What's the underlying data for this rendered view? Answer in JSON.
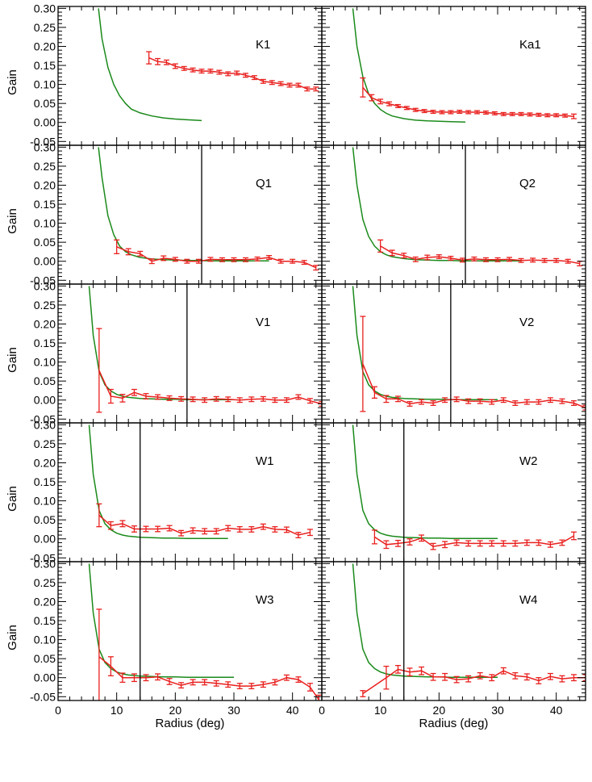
{
  "figure": {
    "ylabel": "Gain",
    "xlabel": "Radius (deg)"
  },
  "colors": {
    "model": "#1b8a1b",
    "data": "#e8201e",
    "marker": "#000000",
    "axis": "#000000"
  },
  "chart_data": [
    {
      "type": "line",
      "label": "K1",
      "xlim": [
        0,
        45
      ],
      "ylim": [
        -0.06,
        0.305
      ],
      "yticks": [
        "-0.05",
        "0.00",
        "0.05",
        "0.10",
        "0.15",
        "0.20",
        "0.25",
        "0.30"
      ],
      "xticks": [],
      "model_curve": {
        "x": [
          6.9,
          7.5,
          8.5,
          9.5,
          10.5,
          11.5,
          12.5,
          14,
          16,
          18,
          20,
          22,
          24.5
        ],
        "y": [
          0.3,
          0.22,
          0.145,
          0.1,
          0.07,
          0.05,
          0.035,
          0.025,
          0.017,
          0.012,
          0.009,
          0.007,
          0.005
        ]
      },
      "data_series": {
        "x": [
          15.5,
          17,
          18.5,
          20,
          21.5,
          23,
          24.5,
          26,
          27.5,
          29,
          30.5,
          32,
          33.5,
          35,
          36.5,
          38,
          39.5,
          41,
          42.5,
          44
        ],
        "y": [
          0.17,
          0.16,
          0.158,
          0.148,
          0.142,
          0.138,
          0.135,
          0.135,
          0.132,
          0.128,
          0.13,
          0.124,
          0.118,
          0.108,
          0.105,
          0.102,
          0.098,
          0.098,
          0.088,
          0.088
        ],
        "err": [
          0.016,
          0.008,
          0.006,
          0.006,
          0.005,
          0.005,
          0.005,
          0.005,
          0.005,
          0.005,
          0.005,
          0.005,
          0.005,
          0.005,
          0.005,
          0.005,
          0.005,
          0.005,
          0.005,
          0.005
        ]
      },
      "marker_x": null
    },
    {
      "type": "line",
      "label": "Ka1",
      "xlim": [
        0,
        45
      ],
      "ylim": [
        -0.06,
        0.305
      ],
      "yticks": [],
      "xticks": [],
      "model_curve": {
        "x": [
          5.3,
          6,
          7,
          8,
          9,
          10,
          11,
          12,
          14,
          16,
          18,
          20,
          22,
          24.5
        ],
        "y": [
          0.3,
          0.2,
          0.12,
          0.075,
          0.05,
          0.034,
          0.024,
          0.017,
          0.01,
          0.006,
          0.004,
          0.003,
          0.002,
          0.001
        ]
      },
      "data_series": {
        "x": [
          7,
          8.5,
          10,
          11.5,
          13,
          14.5,
          16,
          17.5,
          19,
          20.5,
          22,
          23.5,
          25,
          26.5,
          28,
          29.5,
          31,
          32.5,
          34,
          35.5,
          37,
          38.5,
          40,
          41.5,
          43
        ],
        "y": [
          0.092,
          0.065,
          0.055,
          0.049,
          0.043,
          0.038,
          0.033,
          0.03,
          0.028,
          0.027,
          0.027,
          0.028,
          0.027,
          0.027,
          0.026,
          0.024,
          0.022,
          0.022,
          0.022,
          0.021,
          0.02,
          0.019,
          0.019,
          0.018,
          0.016
        ],
        "err": [
          0.025,
          0.008,
          0.006,
          0.005,
          0.004,
          0.004,
          0.004,
          0.004,
          0.004,
          0.004,
          0.004,
          0.004,
          0.004,
          0.004,
          0.004,
          0.004,
          0.004,
          0.004,
          0.004,
          0.004,
          0.004,
          0.004,
          0.004,
          0.004,
          0.006
        ]
      },
      "marker_x": null
    },
    {
      "type": "line",
      "label": "Q1",
      "xlim": [
        0,
        45
      ],
      "ylim": [
        -0.06,
        0.305
      ],
      "yticks": [
        "-0.05",
        "0.00",
        "0.05",
        "0.10",
        "0.15",
        "0.20",
        "0.25",
        "0.30"
      ],
      "xticks": [],
      "model_curve": {
        "x": [
          6.9,
          7.5,
          8.5,
          9.5,
          10.5,
          11.5,
          12.5,
          14,
          16,
          18,
          20,
          22,
          24,
          26,
          28,
          30,
          32,
          34,
          36
        ],
        "y": [
          0.3,
          0.22,
          0.12,
          0.07,
          0.04,
          0.025,
          0.017,
          0.01,
          0.006,
          0.004,
          0.003,
          0.002,
          0.002,
          0.001,
          0.001,
          0.001,
          0.001,
          0.001,
          0.001
        ]
      },
      "data_series": {
        "x": [
          10,
          12,
          14,
          16,
          18,
          20,
          22,
          24,
          26,
          28,
          30,
          32,
          34,
          36,
          38,
          40,
          42,
          44
        ],
        "y": [
          0.038,
          0.025,
          0.02,
          0.0,
          0.008,
          0.005,
          0.0,
          0.0,
          0.005,
          0.004,
          0.004,
          0.004,
          0.006,
          0.01,
          0.0,
          0.0,
          -0.003,
          -0.017
        ],
        "err": [
          0.018,
          0.008,
          0.006,
          0.006,
          0.006,
          0.005,
          0.005,
          0.005,
          0.005,
          0.005,
          0.005,
          0.005,
          0.005,
          0.005,
          0.005,
          0.005,
          0.005,
          0.006
        ]
      },
      "marker_x": 24.5
    },
    {
      "type": "line",
      "label": "Q2",
      "xlim": [
        0,
        45
      ],
      "ylim": [
        -0.06,
        0.305
      ],
      "yticks": [],
      "xticks": [],
      "model_curve": {
        "x": [
          5.3,
          6,
          7,
          8,
          9,
          10,
          11,
          12,
          14,
          16,
          18,
          20,
          22,
          24,
          26,
          28,
          30,
          32,
          34
        ],
        "y": [
          0.3,
          0.2,
          0.11,
          0.065,
          0.04,
          0.025,
          0.017,
          0.012,
          0.007,
          0.004,
          0.003,
          0.002,
          0.002,
          0.001,
          0.001,
          0.001,
          0.001,
          0.001,
          0.001
        ]
      },
      "data_series": {
        "x": [
          10,
          12,
          14,
          16,
          18,
          20,
          22,
          24,
          26,
          28,
          30,
          32,
          34,
          36,
          38,
          40,
          42,
          44
        ],
        "y": [
          0.04,
          0.022,
          0.015,
          0.005,
          0.01,
          0.012,
          0.008,
          0.003,
          0.006,
          0.004,
          0.004,
          0.005,
          0.002,
          0.003,
          0.002,
          0.002,
          0.0,
          -0.006
        ],
        "err": [
          0.016,
          0.007,
          0.006,
          0.006,
          0.006,
          0.005,
          0.005,
          0.005,
          0.005,
          0.005,
          0.005,
          0.005,
          0.005,
          0.005,
          0.005,
          0.005,
          0.005,
          0.006
        ]
      },
      "marker_x": 24.5
    },
    {
      "type": "line",
      "label": "V1",
      "xlim": [
        0,
        45
      ],
      "ylim": [
        -0.06,
        0.305
      ],
      "yticks": [
        "-0.05",
        "0.00",
        "0.05",
        "0.10",
        "0.15",
        "0.20",
        "0.25",
        "0.30"
      ],
      "xticks": [],
      "model_curve": {
        "x": [
          5.3,
          6,
          7,
          8,
          9,
          10,
          11,
          12,
          14,
          16,
          18,
          20,
          22,
          24,
          26,
          28,
          30
        ],
        "y": [
          0.3,
          0.17,
          0.075,
          0.04,
          0.024,
          0.015,
          0.01,
          0.007,
          0.004,
          0.003,
          0.002,
          0.002,
          0.001,
          0.001,
          0.001,
          0.001,
          0.001
        ]
      },
      "data_series": {
        "x": [
          7,
          9,
          11,
          13,
          15,
          17,
          19,
          21,
          23,
          25,
          27,
          29,
          31,
          33,
          35,
          37,
          39,
          41,
          43,
          45
        ],
        "y": [
          0.078,
          0.01,
          0.005,
          0.02,
          0.01,
          0.008,
          0.005,
          0.003,
          0.002,
          0.0,
          0.003,
          0.002,
          0.0,
          0.002,
          0.003,
          0.0,
          0.0,
          0.008,
          -0.002,
          -0.01
        ],
        "err": [
          0.11,
          0.018,
          0.01,
          0.008,
          0.007,
          0.006,
          0.006,
          0.006,
          0.006,
          0.006,
          0.006,
          0.006,
          0.006,
          0.006,
          0.006,
          0.006,
          0.006,
          0.006,
          0.006,
          0.006
        ]
      },
      "marker_x": 22
    },
    {
      "type": "line",
      "label": "V2",
      "xlim": [
        0,
        45
      ],
      "ylim": [
        -0.06,
        0.305
      ],
      "yticks": [],
      "xticks": [],
      "model_curve": {
        "x": [
          5.3,
          6,
          7,
          8,
          9,
          10,
          11,
          12,
          14,
          16,
          18,
          20,
          22,
          24,
          26,
          28,
          30
        ],
        "y": [
          0.3,
          0.17,
          0.075,
          0.04,
          0.024,
          0.015,
          0.01,
          0.007,
          0.004,
          0.003,
          0.002,
          0.002,
          0.001,
          0.001,
          0.001,
          0.001,
          0.001
        ]
      },
      "data_series": {
        "x": [
          7,
          9,
          11,
          13,
          15,
          17,
          19,
          21,
          23,
          25,
          27,
          29,
          31,
          33,
          35,
          37,
          39,
          41,
          43,
          45
        ],
        "y": [
          0.095,
          0.02,
          0.003,
          0.003,
          -0.01,
          -0.005,
          -0.008,
          0.0,
          0.002,
          -0.003,
          -0.003,
          -0.005,
          0.0,
          -0.008,
          -0.005,
          -0.005,
          0.0,
          -0.003,
          -0.008,
          -0.02
        ],
        "err": [
          0.125,
          0.015,
          0.009,
          0.007,
          0.006,
          0.006,
          0.006,
          0.006,
          0.006,
          0.006,
          0.006,
          0.006,
          0.006,
          0.006,
          0.006,
          0.006,
          0.006,
          0.006,
          0.006,
          0.006
        ]
      },
      "marker_x": 22
    },
    {
      "type": "line",
      "label": "W1",
      "xlim": [
        0,
        45
      ],
      "ylim": [
        -0.06,
        0.305
      ],
      "yticks": [
        "-0.05",
        "0.00",
        "0.05",
        "0.10",
        "0.15",
        "0.20",
        "0.25",
        "0.30"
      ],
      "xticks": [],
      "model_curve": {
        "x": [
          5.3,
          6,
          7,
          8,
          9,
          10,
          11,
          12,
          14,
          16,
          18,
          20,
          22,
          24,
          26,
          28,
          29
        ],
        "y": [
          0.3,
          0.17,
          0.075,
          0.04,
          0.024,
          0.015,
          0.01,
          0.007,
          0.004,
          0.003,
          0.002,
          0.002,
          0.001,
          0.001,
          0.001,
          0.001,
          0.001
        ]
      },
      "data_series": {
        "x": [
          7,
          9,
          11,
          13,
          15,
          17,
          19,
          21,
          23,
          25,
          27,
          29,
          31,
          33,
          35,
          37,
          39,
          41,
          43
        ],
        "y": [
          0.062,
          0.035,
          0.04,
          0.026,
          0.026,
          0.026,
          0.028,
          0.015,
          0.022,
          0.02,
          0.02,
          0.028,
          0.025,
          0.025,
          0.032,
          0.025,
          0.024,
          0.01,
          0.017
        ],
        "err": [
          0.03,
          0.01,
          0.008,
          0.008,
          0.007,
          0.007,
          0.007,
          0.007,
          0.007,
          0.007,
          0.007,
          0.007,
          0.007,
          0.007,
          0.007,
          0.007,
          0.007,
          0.007,
          0.008
        ]
      },
      "marker_x": 14
    },
    {
      "type": "line",
      "label": "W2",
      "xlim": [
        0,
        45
      ],
      "ylim": [
        -0.06,
        0.305
      ],
      "yticks": [],
      "xticks": [],
      "model_curve": {
        "x": [
          5.3,
          6,
          7,
          8,
          9,
          10,
          11,
          12,
          14,
          16,
          18,
          20,
          22,
          24,
          26,
          28,
          30
        ],
        "y": [
          0.3,
          0.17,
          0.075,
          0.04,
          0.024,
          0.015,
          0.01,
          0.007,
          0.004,
          0.003,
          0.002,
          0.002,
          0.001,
          0.001,
          0.001,
          0.001,
          0.001
        ]
      },
      "data_series": {
        "x": [
          9,
          11,
          13,
          15,
          17,
          19,
          21,
          23,
          25,
          27,
          29,
          31,
          33,
          35,
          37,
          39,
          41,
          43
        ],
        "y": [
          0.005,
          -0.015,
          -0.012,
          -0.008,
          0.002,
          -0.02,
          -0.015,
          -0.01,
          -0.012,
          -0.012,
          -0.012,
          -0.012,
          -0.012,
          -0.01,
          -0.01,
          -0.015,
          -0.01,
          0.008
        ],
        "err": [
          0.018,
          0.01,
          0.008,
          0.008,
          0.008,
          0.008,
          0.008,
          0.007,
          0.007,
          0.007,
          0.007,
          0.007,
          0.007,
          0.007,
          0.007,
          0.007,
          0.007,
          0.01
        ]
      },
      "marker_x": 14
    },
    {
      "type": "line",
      "label": "W3",
      "xlim": [
        0,
        45
      ],
      "ylim": [
        -0.06,
        0.305
      ],
      "yticks": [
        "-0.05",
        "0.00",
        "0.05",
        "0.10",
        "0.15",
        "0.20",
        "0.25",
        "0.30"
      ],
      "xticks": [
        "0",
        "10",
        "20",
        "30",
        "40"
      ],
      "model_curve": {
        "x": [
          5.3,
          6,
          7,
          8,
          9,
          10,
          11,
          12,
          14,
          16,
          18,
          20,
          22,
          24,
          26,
          28,
          30
        ],
        "y": [
          0.3,
          0.17,
          0.075,
          0.04,
          0.024,
          0.015,
          0.01,
          0.007,
          0.004,
          0.003,
          0.002,
          0.002,
          0.001,
          0.001,
          0.001,
          0.001,
          0.001
        ]
      },
      "data_series": {
        "x": [
          7,
          9,
          11,
          13,
          15,
          17,
          19,
          21,
          23,
          25,
          27,
          29,
          31,
          33,
          35,
          37,
          39,
          41,
          43,
          44.5
        ],
        "y": [
          0.055,
          0.03,
          0.0,
          0.0,
          0.0,
          0.002,
          -0.01,
          -0.02,
          -0.012,
          -0.012,
          -0.015,
          -0.018,
          -0.022,
          -0.022,
          -0.018,
          -0.012,
          0.0,
          -0.005,
          -0.025,
          -0.058
        ],
        "err": [
          0.125,
          0.025,
          0.012,
          0.01,
          0.008,
          0.008,
          0.008,
          0.007,
          0.007,
          0.007,
          0.007,
          0.007,
          0.007,
          0.007,
          0.007,
          0.007,
          0.007,
          0.007,
          0.01,
          0.012
        ]
      },
      "marker_x": 14
    },
    {
      "type": "line",
      "label": "W4",
      "xlim": [
        0,
        45
      ],
      "ylim": [
        -0.06,
        0.305
      ],
      "yticks": [],
      "xticks": [
        "0",
        "10",
        "20",
        "30",
        "40"
      ],
      "model_curve": {
        "x": [
          5.3,
          6,
          7,
          8,
          9,
          10,
          11,
          12,
          14,
          16,
          18,
          20,
          22,
          24,
          26,
          28,
          30
        ],
        "y": [
          0.3,
          0.17,
          0.075,
          0.04,
          0.024,
          0.015,
          0.01,
          0.007,
          0.004,
          0.003,
          0.002,
          0.002,
          0.001,
          0.001,
          0.001,
          0.001,
          0.001
        ]
      },
      "data_series": {
        "x": [
          7,
          11,
          13,
          15,
          17,
          19,
          21,
          23,
          25,
          27,
          29,
          31,
          33,
          35,
          37,
          39,
          41,
          43,
          45
        ],
        "y": [
          -0.042,
          0.0,
          0.022,
          0.015,
          0.018,
          0.002,
          0.002,
          -0.005,
          -0.003,
          0.005,
          0.0,
          0.018,
          0.005,
          0.002,
          -0.008,
          0.003,
          -0.003,
          0.0,
          0.0
        ],
        "err": [
          0.008,
          0.03,
          0.01,
          0.01,
          0.01,
          0.009,
          0.009,
          0.008,
          0.008,
          0.008,
          0.008,
          0.008,
          0.008,
          0.008,
          0.008,
          0.008,
          0.008,
          0.008,
          0.008
        ]
      },
      "marker_x": 14
    }
  ]
}
